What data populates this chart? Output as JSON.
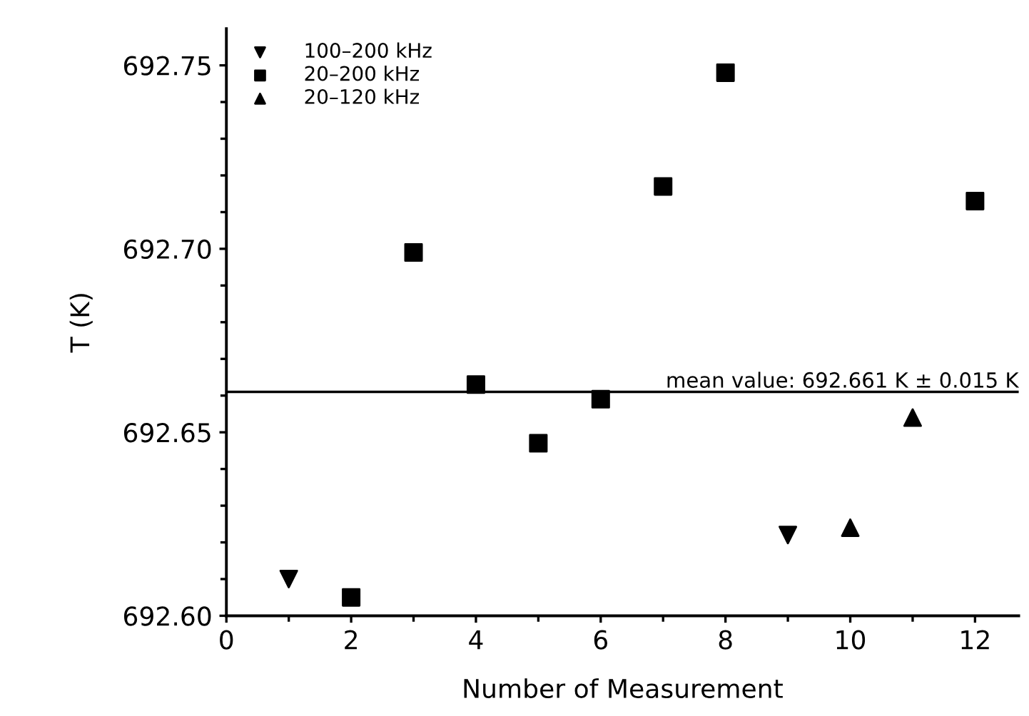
{
  "chart_data": {
    "type": "scatter",
    "xlabel": "Number of Measurement",
    "ylabel": "T (K)",
    "xlim": [
      0,
      12.7
    ],
    "xticks": [
      0,
      {
        "value": 1,
        "label": null
      },
      2,
      {
        "value": 3,
        "label": null
      },
      4,
      {
        "value": 5,
        "label": null
      },
      6,
      {
        "value": 7,
        "label": null
      },
      8,
      {
        "value": 9,
        "label": null
      },
      10,
      {
        "value": 11,
        "label": null
      },
      12
    ],
    "ylim": [
      692.6,
      692.76
    ],
    "yticks": [
      {
        "value": 692.6,
        "label": "692.60"
      },
      {
        "value": 692.61,
        "label": null
      },
      {
        "value": 692.62,
        "label": null
      },
      {
        "value": 692.63,
        "label": null
      },
      {
        "value": 692.64,
        "label": null
      },
      {
        "value": 692.65,
        "label": "692.65"
      },
      {
        "value": 692.66,
        "label": null
      },
      {
        "value": 692.67,
        "label": null
      },
      {
        "value": 692.68,
        "label": null
      },
      {
        "value": 692.69,
        "label": null
      },
      {
        "value": 692.7,
        "label": "692.70"
      },
      {
        "value": 692.71,
        "label": null
      },
      {
        "value": 692.72,
        "label": null
      },
      {
        "value": 692.73,
        "label": null
      },
      {
        "value": 692.74,
        "label": null
      },
      {
        "value": 692.75,
        "label": "692.75"
      }
    ],
    "grid": false,
    "legend": "top left",
    "series": [
      {
        "name": "100–200 kHz",
        "color": "#000000",
        "marker": "triangle-down",
        "x": [
          1,
          9
        ],
        "values": [
          692.61,
          692.622
        ]
      },
      {
        "name": "20–200 kHz",
        "color": "#000000",
        "marker": "square",
        "x": [
          2,
          3,
          4,
          5,
          6,
          7,
          8,
          12
        ],
        "values": [
          692.605,
          692.699,
          692.663,
          692.647,
          692.659,
          692.717,
          692.748,
          692.713
        ]
      },
      {
        "name": "20–120 kHz",
        "color": "#000000",
        "marker": "triangle",
        "x": [
          10,
          11
        ],
        "values": [
          692.624,
          692.654
        ]
      }
    ],
    "ref_lines": [
      {
        "axis": "y",
        "value": 692.661,
        "label": "mean value: 692.661 K ± 0.015 K",
        "color": "#000000"
      }
    ]
  }
}
